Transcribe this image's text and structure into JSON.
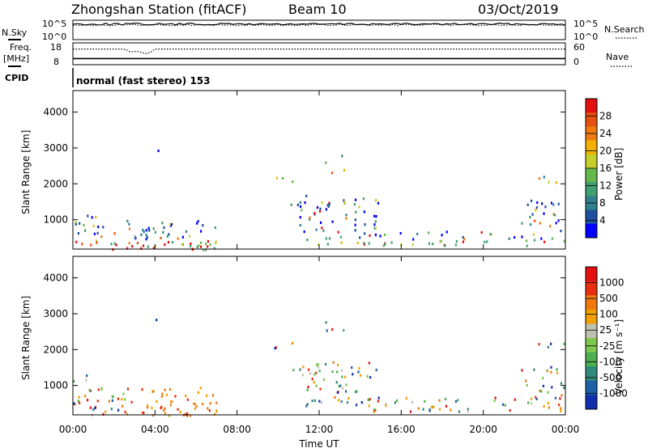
{
  "header": {
    "title": "Zhongshan Station (fitACF)",
    "beam": "Beam 10",
    "date": "03/Oct/2019"
  },
  "nsky_panel": {
    "left_label": "N.Sky",
    "right_label": "N.Search",
    "left_ticks": [
      "10^5",
      "10^0"
    ],
    "right_ticks": [
      "10^5",
      "10^0"
    ],
    "nsky_level": 0.8,
    "nsearch_level": 0.75
  },
  "freq_panel": {
    "left_label_1": "Freq.",
    "left_label_2": "[MHz]",
    "right_label": "Nave",
    "left_ticks": [
      "18",
      "8"
    ],
    "right_ticks": [
      "60",
      "0"
    ],
    "freq_level": 0.28,
    "nave_level": 0.72
  },
  "cpid": {
    "label": "CPID",
    "text": "normal (fast stereo) 153"
  },
  "chart_data": [
    {
      "type": "heatmap",
      "name": "power",
      "ylabel": "Slant Range [km]",
      "yticks": [
        "4000",
        "3000",
        "2000",
        "1000"
      ],
      "yvalues": [
        4000,
        3000,
        2000,
        1000
      ],
      "ylim": [
        180,
        4600
      ],
      "xlim": [
        0,
        24
      ],
      "colorbar_label": "Power [dB]",
      "colorbar_ticks": [
        "28",
        "24",
        "20",
        "16",
        "12",
        "8",
        "4"
      ],
      "colors": [
        "#0000ff",
        "#1e4fa0",
        "#2f7f8f",
        "#3f9f6f",
        "#66b84a",
        "#c6cf2a",
        "#f4b000",
        "#f07a10",
        "#e85010",
        "#e41010"
      ]
    },
    {
      "type": "heatmap",
      "name": "velocity",
      "ylabel": "Slant Range [km]",
      "yticks": [
        "4000",
        "3000",
        "2000",
        "1000"
      ],
      "yvalues": [
        4000,
        3000,
        2000,
        1000
      ],
      "ylim": [
        180,
        4600
      ],
      "xlim": [
        0,
        24
      ],
      "colorbar_label": "Velocity [m s⁻¹]",
      "colorbar_ticks": [
        "1000",
        "500",
        "100",
        "25",
        "-25",
        "-100",
        "-500",
        "-1000"
      ],
      "colors": [
        "#1030b0",
        "#1d5fa8",
        "#2f8a7a",
        "#4caf50",
        "#7cc84a",
        "#c0c0b0",
        "#f0a000",
        "#f07a10",
        "#e83010",
        "#e41010"
      ]
    }
  ],
  "xaxis": {
    "ticks": [
      "00:00",
      "04:00",
      "08:00",
      "12:00",
      "16:00",
      "20:00",
      "00:00"
    ],
    "label": "Time UT"
  }
}
